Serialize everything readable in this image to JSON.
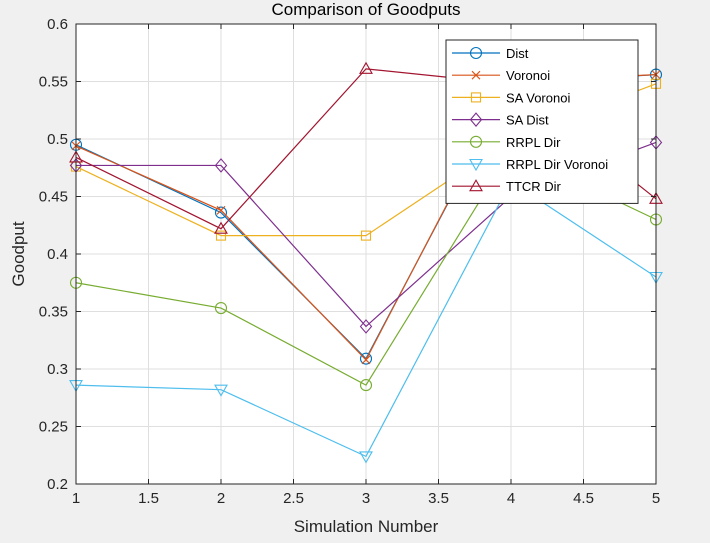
{
  "chart_data": {
    "type": "line",
    "title": "Comparison of Goodputs",
    "xlabel": "Simulation Number",
    "ylabel": "Goodput",
    "xlim": [
      1,
      5
    ],
    "ylim": [
      0.2,
      0.6
    ],
    "xticks": [
      "1",
      "1.5",
      "2",
      "2.5",
      "3",
      "3.5",
      "4",
      "4.5",
      "5"
    ],
    "yticks": [
      "0.2",
      "0.25",
      "0.3",
      "0.35",
      "0.4",
      "0.45",
      "0.5",
      "0.55",
      "0.6"
    ],
    "grid": true,
    "legend_position": "top-right",
    "x": [
      1,
      2,
      3,
      4,
      5
    ],
    "series": [
      {
        "name": "Dist",
        "color": "#0072BD",
        "marker": "circle",
        "values": [
          0.495,
          0.436,
          0.309,
          0.548,
          0.556
        ]
      },
      {
        "name": "Voronoi",
        "color": "#D95319",
        "marker": "x",
        "values": [
          0.494,
          0.438,
          0.308,
          0.55,
          0.556
        ]
      },
      {
        "name": "SA Voronoi",
        "color": "#EDB120",
        "marker": "square",
        "values": [
          0.476,
          0.416,
          0.416,
          0.5,
          0.548
        ]
      },
      {
        "name": "SA Dist",
        "color": "#7E2F8E",
        "marker": "diamond",
        "values": [
          0.477,
          0.477,
          0.337,
          0.45,
          0.497
        ]
      },
      {
        "name": "RRPL Dir",
        "color": "#77AC30",
        "marker": "circle",
        "values": [
          0.375,
          0.353,
          0.286,
          0.49,
          0.43
        ]
      },
      {
        "name": "RRPL Dir Voronoi",
        "color": "#4DBEEE",
        "marker": "triangle-down",
        "values": [
          0.286,
          0.282,
          0.224,
          0.463,
          0.38
        ]
      },
      {
        "name": "TTCR Dir",
        "color": "#A2142F",
        "marker": "triangle-up",
        "values": [
          0.484,
          0.422,
          0.561,
          0.548,
          0.448
        ]
      }
    ]
  }
}
